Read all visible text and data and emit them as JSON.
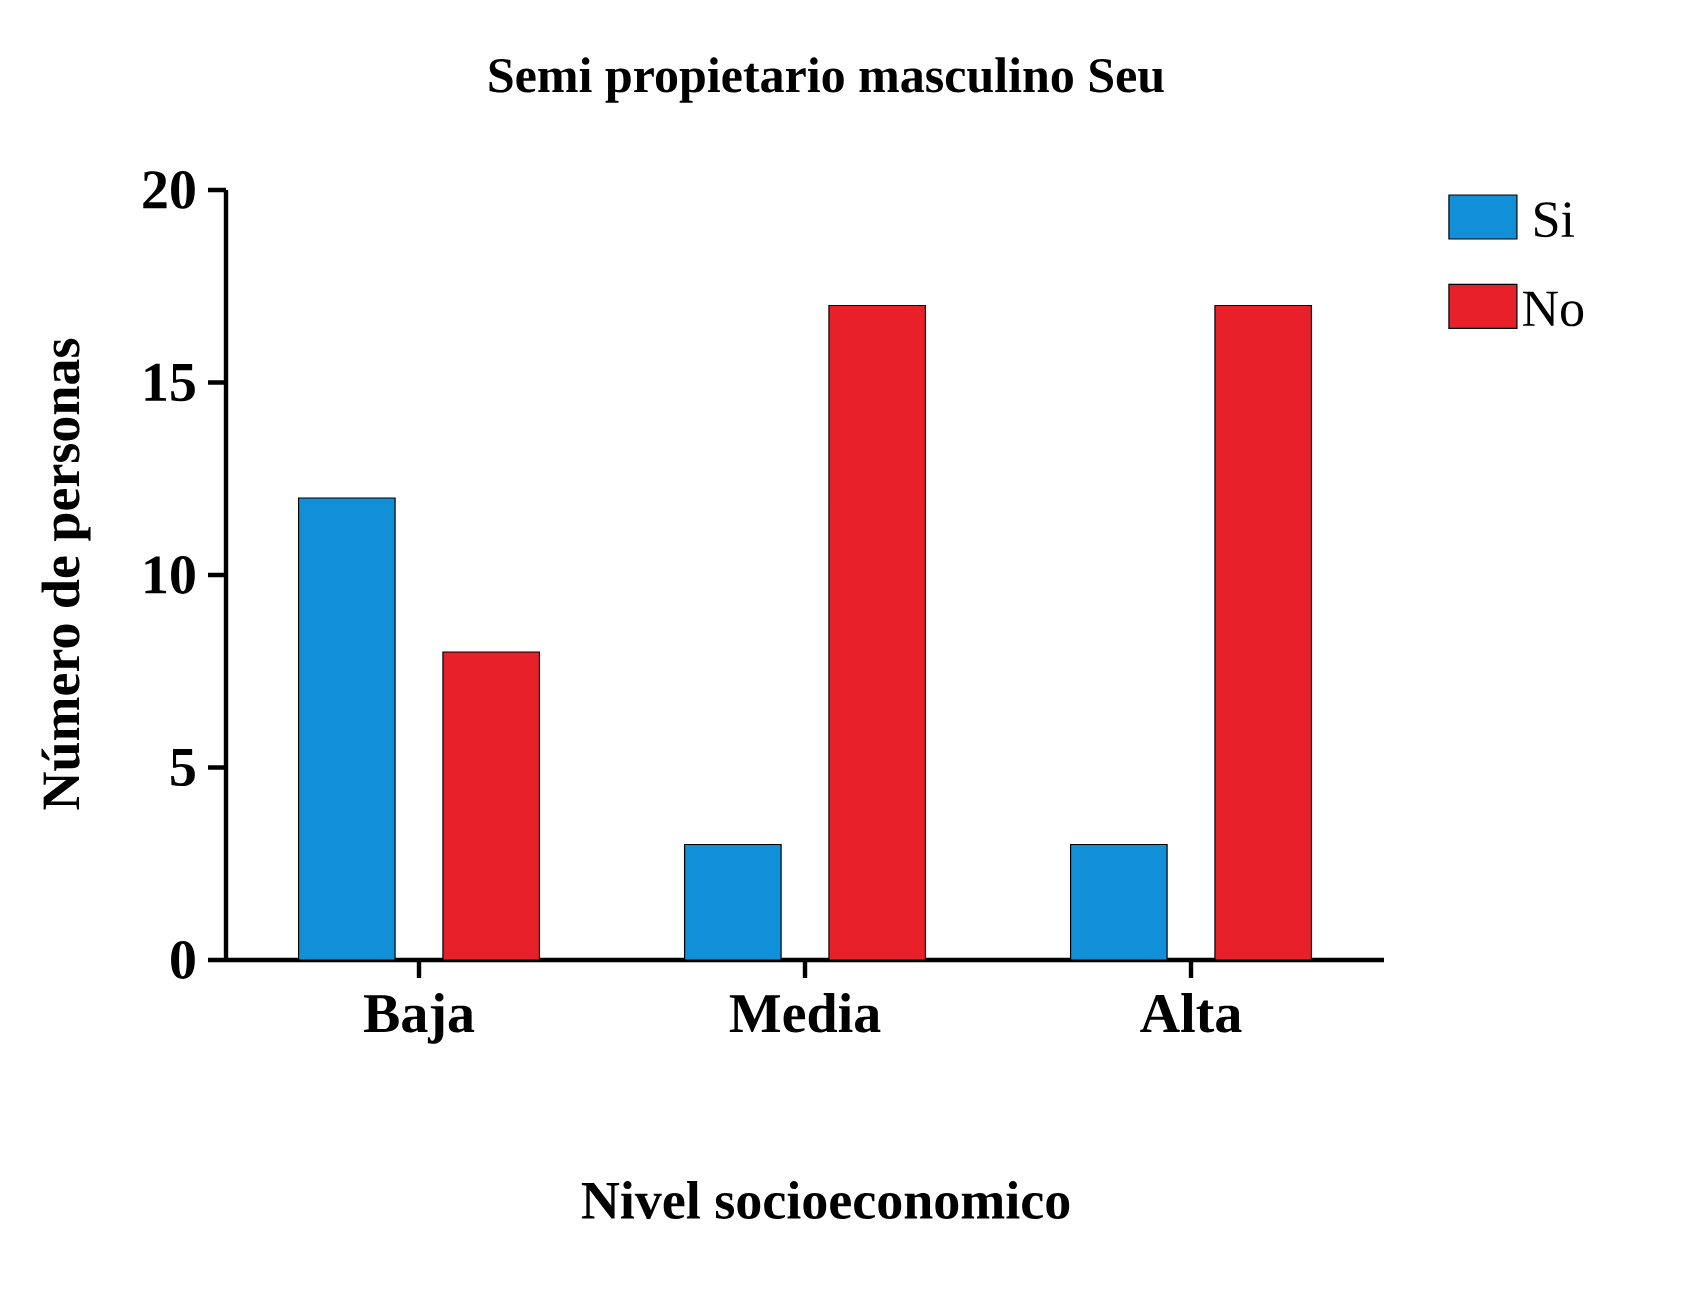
{
  "chart_data": {
    "type": "bar",
    "title": "Semi propietario masculino Seu",
    "xlabel": "Nivel socioeconomico",
    "ylabel": "Número de personas",
    "categories": [
      "Baja",
      "Media",
      "Alta"
    ],
    "series": [
      {
        "name": "Si",
        "color": "#1190d8",
        "values": [
          12,
          3,
          3
        ]
      },
      {
        "name": "No",
        "color": "#e8202a",
        "values": [
          8,
          17,
          17
        ]
      }
    ],
    "ylim": [
      0,
      20
    ],
    "yticks": [
      0,
      5,
      10,
      15,
      20
    ],
    "legend": "right"
  }
}
